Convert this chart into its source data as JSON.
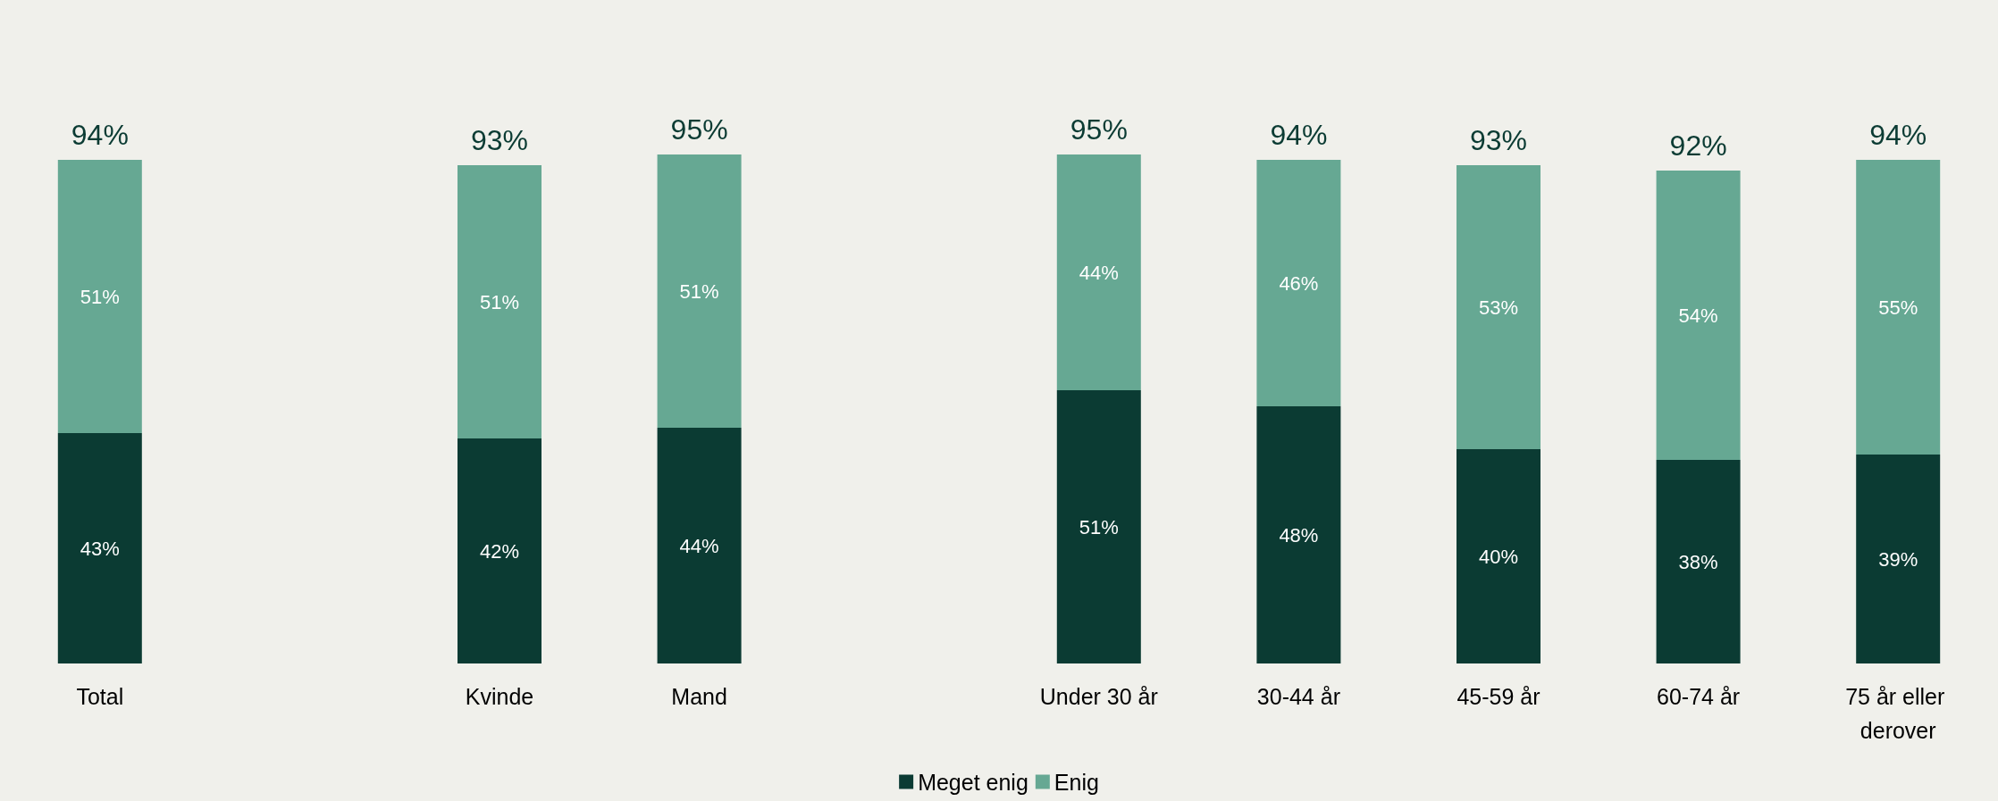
{
  "chart_data": {
    "type": "bar",
    "stacked": true,
    "legend": "bottom",
    "categories": [
      "Total",
      null,
      "Kvinde",
      "Mand",
      null,
      "Under 30 år",
      "30-44 år",
      "45-59 år",
      "60-74 år",
      "75 år eller derover"
    ],
    "series": [
      {
        "name": "Meget enig",
        "color": "#0b3b33",
        "values": [
          43,
          null,
          42,
          44,
          null,
          51,
          48,
          40,
          38,
          39
        ],
        "value_labels": [
          "43%",
          null,
          "42%",
          "44%",
          null,
          "51%",
          "48%",
          "40%",
          "38%",
          "39%"
        ]
      },
      {
        "name": "Enig",
        "color": "#66a893",
        "values": [
          51,
          null,
          51,
          51,
          null,
          44,
          46,
          53,
          54,
          55
        ],
        "value_labels": [
          "51%",
          null,
          "51%",
          "51%",
          null,
          "44%",
          "46%",
          "53%",
          "54%",
          "55%"
        ]
      }
    ],
    "totals": [
      "94%",
      null,
      "93%",
      "95%",
      null,
      "95%",
      "94%",
      "93%",
      "92%",
      "94%"
    ]
  }
}
